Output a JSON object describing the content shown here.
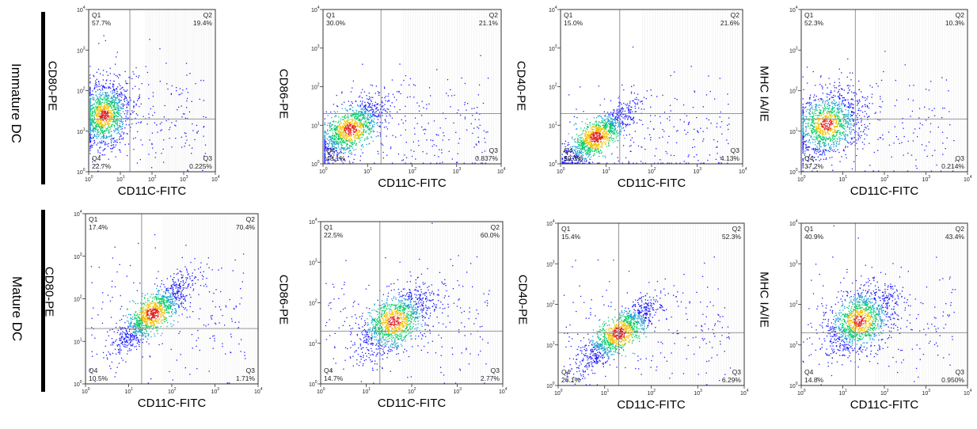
{
  "row_labels": [
    "Immature DC",
    "Mature DC"
  ],
  "chart_data": [
    {
      "type": "scatter",
      "row": "Immature DC",
      "ylabel": "CD80-PE",
      "xlabel": "CD11C-FITC",
      "xlim": [
        1,
        10000
      ],
      "ylim": [
        1,
        10000
      ],
      "x_scale": "log",
      "y_scale": "log",
      "x_ticks": [
        "10",
        "10",
        "10",
        "10",
        "10"
      ],
      "tick_exponents": [
        "0",
        "1",
        "2",
        "3",
        "4"
      ],
      "gate": {
        "x": 20,
        "y": 20
      },
      "quadrants": [
        {
          "name": "Q1",
          "value": "57.7%"
        },
        {
          "name": "Q2",
          "value": "19.4%"
        },
        {
          "name": "Q3",
          "value": "0.225%"
        },
        {
          "name": "Q4",
          "value": "22.7%"
        }
      ],
      "cluster": {
        "x": 3,
        "y": 25,
        "corr": 0.2
      }
    },
    {
      "type": "scatter",
      "row": "Immature DC",
      "ylabel": "CD86-PE",
      "xlabel": "CD11C-FITC",
      "xlim": [
        1,
        10000
      ],
      "ylim": [
        1,
        10000
      ],
      "x_scale": "log",
      "y_scale": "log",
      "gate": {
        "x": 20,
        "y": 20
      },
      "quadrants": [
        {
          "name": "Q1",
          "value": "30.0%"
        },
        {
          "name": "Q2",
          "value": "21.1%"
        },
        {
          "name": "Q3",
          "value": "0.837%"
        },
        {
          "name": "Q4",
          "value": "48.1%"
        }
      ],
      "cluster": {
        "x": 4,
        "y": 8,
        "corr": 0.7
      }
    },
    {
      "type": "scatter",
      "row": "Immature DC",
      "ylabel": "CD40-PE",
      "xlabel": "CD11C-FITC",
      "xlim": [
        1,
        10000
      ],
      "ylim": [
        1,
        10000
      ],
      "x_scale": "log",
      "y_scale": "log",
      "gate": {
        "x": 20,
        "y": 20
      },
      "quadrants": [
        {
          "name": "Q1",
          "value": "15.0%"
        },
        {
          "name": "Q2",
          "value": "21.6%"
        },
        {
          "name": "Q3",
          "value": "4.13%"
        },
        {
          "name": "Q4",
          "value": "59.3%"
        }
      ],
      "cluster": {
        "x": 6,
        "y": 5,
        "corr": 0.85
      }
    },
    {
      "type": "scatter",
      "row": "Immature DC",
      "ylabel": "MHC IA/IE",
      "xlabel": "CD11C-FITC",
      "xlim": [
        1,
        10000
      ],
      "ylim": [
        1,
        10000
      ],
      "x_scale": "log",
      "y_scale": "log",
      "gate": {
        "x": 20,
        "y": 20
      },
      "quadrants": [
        {
          "name": "Q1",
          "value": "52.3%"
        },
        {
          "name": "Q2",
          "value": "10.3%"
        },
        {
          "name": "Q3",
          "value": "0.214%"
        },
        {
          "name": "Q4",
          "value": "37.2%"
        }
      ],
      "cluster": {
        "x": 4,
        "y": 15,
        "corr": 0.3
      }
    },
    {
      "type": "scatter",
      "row": "Mature DC",
      "ylabel": "CD80-PE",
      "xlabel": "CD11C-FITC",
      "xlim": [
        1,
        10000
      ],
      "ylim": [
        1,
        10000
      ],
      "x_scale": "log",
      "y_scale": "log",
      "gate": {
        "x": 20,
        "y": 20
      },
      "quadrants": [
        {
          "name": "Q1",
          "value": "17.4%"
        },
        {
          "name": "Q2",
          "value": "70.4%"
        },
        {
          "name": "Q3",
          "value": "1.71%"
        },
        {
          "name": "Q4",
          "value": "10.5%"
        }
      ],
      "cluster": {
        "x": 35,
        "y": 45,
        "corr": 0.85
      }
    },
    {
      "type": "scatter",
      "row": "Mature DC",
      "ylabel": "CD86-PE",
      "xlabel": "CD11C-FITC",
      "xlim": [
        1,
        10000
      ],
      "ylim": [
        1,
        10000
      ],
      "x_scale": "log",
      "y_scale": "log",
      "gate": {
        "x": 20,
        "y": 20
      },
      "quadrants": [
        {
          "name": "Q1",
          "value": "22.5%"
        },
        {
          "name": "Q2",
          "value": "60.0%"
        },
        {
          "name": "Q3",
          "value": "2.77%"
        },
        {
          "name": "Q4",
          "value": "14.7%"
        }
      ],
      "cluster": {
        "x": 40,
        "y": 35,
        "corr": 0.6
      }
    },
    {
      "type": "scatter",
      "row": "Mature DC",
      "ylabel": "CD40-PE",
      "xlabel": "CD11C-FITC",
      "xlim": [
        1,
        10000
      ],
      "ylim": [
        1,
        10000
      ],
      "x_scale": "log",
      "y_scale": "log",
      "gate": {
        "x": 20,
        "y": 20
      },
      "quadrants": [
        {
          "name": "Q1",
          "value": "15.4%"
        },
        {
          "name": "Q2",
          "value": "52.3%"
        },
        {
          "name": "Q3",
          "value": "6.29%"
        },
        {
          "name": "Q4",
          "value": "26.1%"
        }
      ],
      "cluster": {
        "x": 20,
        "y": 20,
        "corr": 0.85
      }
    },
    {
      "type": "scatter",
      "row": "Mature DC",
      "ylabel": "MHC IA/IE",
      "xlabel": "CD11C-FITC",
      "xlim": [
        1,
        10000
      ],
      "ylim": [
        1,
        10000
      ],
      "x_scale": "log",
      "y_scale": "log",
      "gate": {
        "x": 20,
        "y": 20
      },
      "quadrants": [
        {
          "name": "Q1",
          "value": "40.9%"
        },
        {
          "name": "Q2",
          "value": "43.4%"
        },
        {
          "name": "Q3",
          "value": "0.950%"
        },
        {
          "name": "Q4",
          "value": "14.8%"
        }
      ],
      "cluster": {
        "x": 25,
        "y": 40,
        "corr": 0.5
      }
    }
  ],
  "colors": {
    "low": "#1a1aff",
    "mid": "#00cc66",
    "high": "#e02020",
    "line": "#888888"
  }
}
